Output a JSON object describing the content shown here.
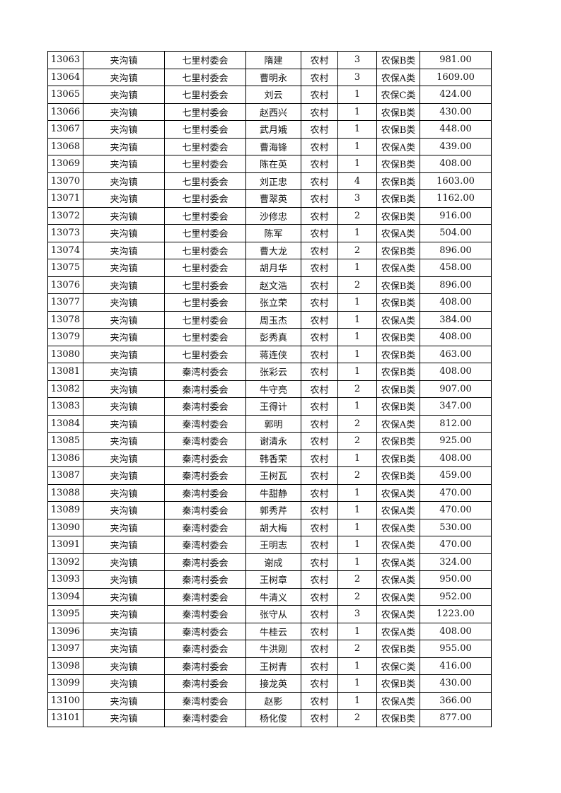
{
  "table": {
    "rows": [
      [
        "13063",
        "夹沟镇",
        "七里村委会",
        "隋建",
        "农村",
        "3",
        "农保B类",
        "981.00"
      ],
      [
        "13064",
        "夹沟镇",
        "七里村委会",
        "曹明永",
        "农村",
        "3",
        "农保A类",
        "1609.00"
      ],
      [
        "13065",
        "夹沟镇",
        "七里村委会",
        "刘云",
        "农村",
        "1",
        "农保C类",
        "424.00"
      ],
      [
        "13066",
        "夹沟镇",
        "七里村委会",
        "赵西兴",
        "农村",
        "1",
        "农保B类",
        "430.00"
      ],
      [
        "13067",
        "夹沟镇",
        "七里村委会",
        "武月娥",
        "农村",
        "1",
        "农保B类",
        "448.00"
      ],
      [
        "13068",
        "夹沟镇",
        "七里村委会",
        "曹海锋",
        "农村",
        "1",
        "农保A类",
        "439.00"
      ],
      [
        "13069",
        "夹沟镇",
        "七里村委会",
        "陈在英",
        "农村",
        "1",
        "农保B类",
        "408.00"
      ],
      [
        "13070",
        "夹沟镇",
        "七里村委会",
        "刘正忠",
        "农村",
        "4",
        "农保B类",
        "1603.00"
      ],
      [
        "13071",
        "夹沟镇",
        "七里村委会",
        "曹翠英",
        "农村",
        "3",
        "农保B类",
        "1162.00"
      ],
      [
        "13072",
        "夹沟镇",
        "七里村委会",
        "沙修忠",
        "农村",
        "2",
        "农保B类",
        "916.00"
      ],
      [
        "13073",
        "夹沟镇",
        "七里村委会",
        "陈军",
        "农村",
        "1",
        "农保A类",
        "504.00"
      ],
      [
        "13074",
        "夹沟镇",
        "七里村委会",
        "曹大龙",
        "农村",
        "2",
        "农保B类",
        "896.00"
      ],
      [
        "13075",
        "夹沟镇",
        "七里村委会",
        "胡月华",
        "农村",
        "1",
        "农保A类",
        "458.00"
      ],
      [
        "13076",
        "夹沟镇",
        "七里村委会",
        "赵文浩",
        "农村",
        "2",
        "农保B类",
        "896.00"
      ],
      [
        "13077",
        "夹沟镇",
        "七里村委会",
        "张立荣",
        "农村",
        "1",
        "农保B类",
        "408.00"
      ],
      [
        "13078",
        "夹沟镇",
        "七里村委会",
        "周玉杰",
        "农村",
        "1",
        "农保A类",
        "384.00"
      ],
      [
        "13079",
        "夹沟镇",
        "七里村委会",
        "彭秀真",
        "农村",
        "1",
        "农保B类",
        "408.00"
      ],
      [
        "13080",
        "夹沟镇",
        "七里村委会",
        "蒋连侠",
        "农村",
        "1",
        "农保B类",
        "463.00"
      ],
      [
        "13081",
        "夹沟镇",
        "秦湾村委会",
        "张彩云",
        "农村",
        "1",
        "农保B类",
        "408.00"
      ],
      [
        "13082",
        "夹沟镇",
        "秦湾村委会",
        "牛守亮",
        "农村",
        "2",
        "农保B类",
        "907.00"
      ],
      [
        "13083",
        "夹沟镇",
        "秦湾村委会",
        "王得计",
        "农村",
        "1",
        "农保B类",
        "347.00"
      ],
      [
        "13084",
        "夹沟镇",
        "秦湾村委会",
        "郭明",
        "农村",
        "2",
        "农保A类",
        "812.00"
      ],
      [
        "13085",
        "夹沟镇",
        "秦湾村委会",
        "谢清永",
        "农村",
        "2",
        "农保B类",
        "925.00"
      ],
      [
        "13086",
        "夹沟镇",
        "秦湾村委会",
        "韩香荣",
        "农村",
        "1",
        "农保B类",
        "408.00"
      ],
      [
        "13087",
        "夹沟镇",
        "秦湾村委会",
        "王树瓦",
        "农村",
        "2",
        "农保B类",
        "459.00"
      ],
      [
        "13088",
        "夹沟镇",
        "秦湾村委会",
        "牛甜静",
        "农村",
        "1",
        "农保A类",
        "470.00"
      ],
      [
        "13089",
        "夹沟镇",
        "秦湾村委会",
        "郭秀芹",
        "农村",
        "1",
        "农保A类",
        "470.00"
      ],
      [
        "13090",
        "夹沟镇",
        "秦湾村委会",
        "胡大梅",
        "农村",
        "1",
        "农保A类",
        "530.00"
      ],
      [
        "13091",
        "夹沟镇",
        "秦湾村委会",
        "王明志",
        "农村",
        "1",
        "农保A类",
        "470.00"
      ],
      [
        "13092",
        "夹沟镇",
        "秦湾村委会",
        "谢成",
        "农村",
        "1",
        "农保A类",
        "324.00"
      ],
      [
        "13093",
        "夹沟镇",
        "秦湾村委会",
        "王树章",
        "农村",
        "2",
        "农保A类",
        "950.00"
      ],
      [
        "13094",
        "夹沟镇",
        "秦湾村委会",
        "牛清义",
        "农村",
        "2",
        "农保A类",
        "952.00"
      ],
      [
        "13095",
        "夹沟镇",
        "秦湾村委会",
        "张守从",
        "农村",
        "3",
        "农保A类",
        "1223.00"
      ],
      [
        "13096",
        "夹沟镇",
        "秦湾村委会",
        "牛桂云",
        "农村",
        "1",
        "农保A类",
        "408.00"
      ],
      [
        "13097",
        "夹沟镇",
        "秦湾村委会",
        "牛洪刚",
        "农村",
        "2",
        "农保B类",
        "955.00"
      ],
      [
        "13098",
        "夹沟镇",
        "秦湾村委会",
        "王树青",
        "农村",
        "1",
        "农保C类",
        "416.00"
      ],
      [
        "13099",
        "夹沟镇",
        "秦湾村委会",
        "接龙英",
        "农村",
        "1",
        "农保B类",
        "430.00"
      ],
      [
        "13100",
        "夹沟镇",
        "秦湾村委会",
        "赵影",
        "农村",
        "1",
        "农保A类",
        "366.00"
      ],
      [
        "13101",
        "夹沟镇",
        "秦湾村委会",
        "杨化俊",
        "农村",
        "2",
        "农保B类",
        "877.00"
      ]
    ]
  }
}
